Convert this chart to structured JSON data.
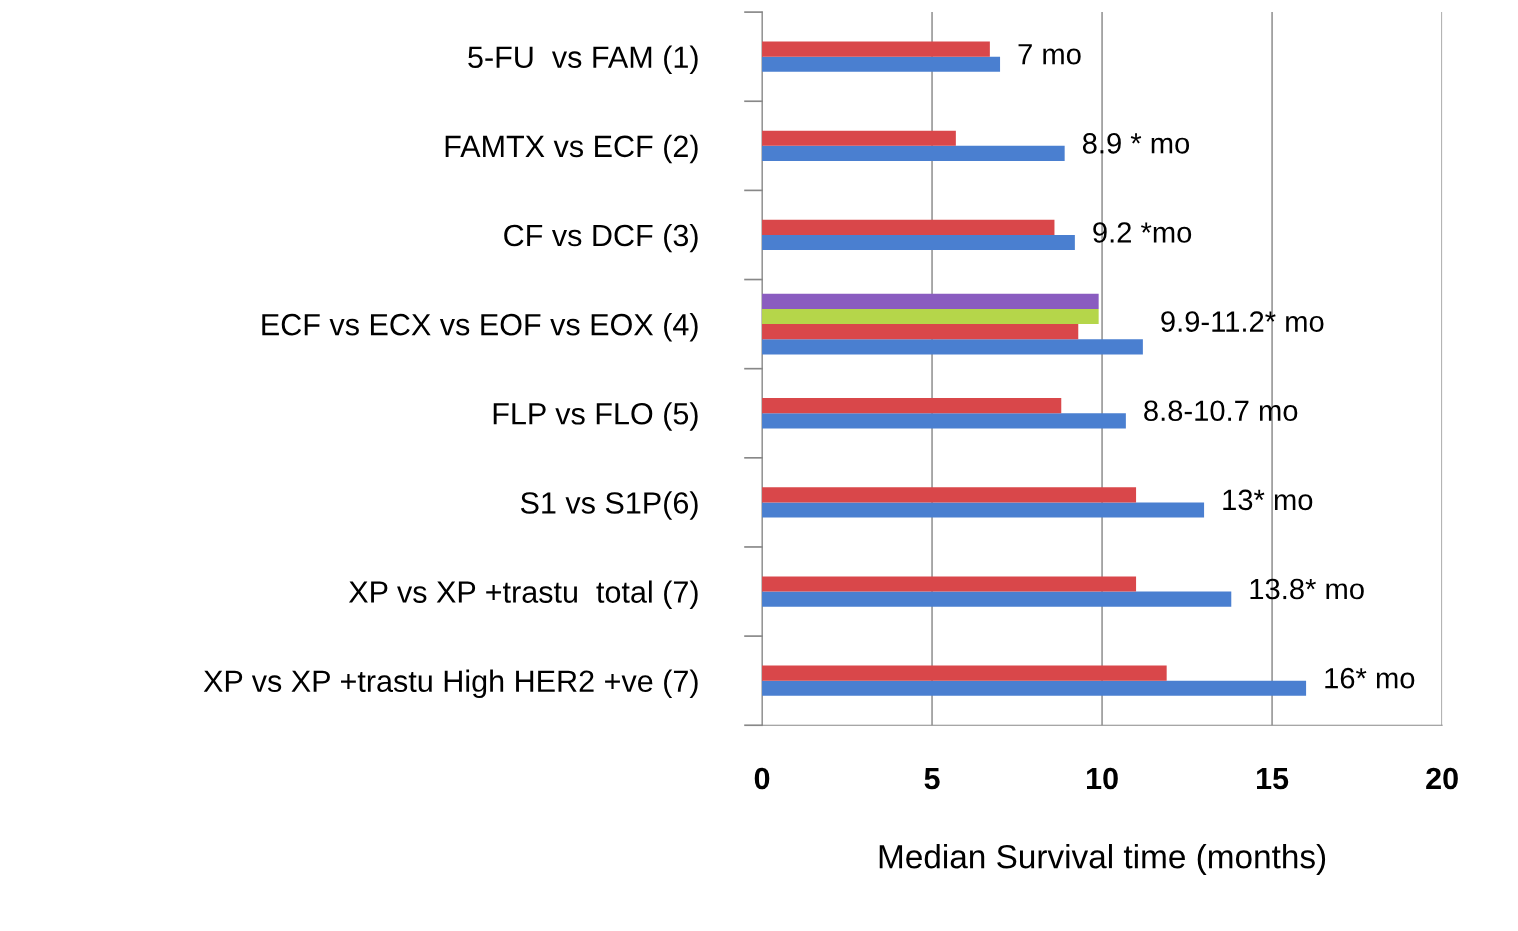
{
  "chart_data": {
    "type": "bar",
    "orientation": "horizontal",
    "xlabel": "Median Survival time (months)",
    "categories": [
      "5-FU  vs FAM (1)",
      "FAMTX vs ECF (2)",
      "CF vs DCF (3)",
      "ECF vs ECX vs EOF vs EOX (4)",
      "FLP vs FLO (5)",
      "S1 vs S1P(6)",
      "XP vs XP +trastu  total (7)",
      "XP vs XP +trastu High HER2 +ve (7)"
    ],
    "series": [
      {
        "color": "#4a7fd0",
        "values": [
          7.0,
          8.9,
          9.2,
          11.2,
          10.7,
          13.0,
          13.8,
          16.0
        ]
      },
      {
        "color": "#d9474a",
        "values": [
          6.7,
          5.7,
          8.6,
          9.3,
          8.8,
          11.0,
          11.0,
          11.9
        ]
      },
      {
        "color": "#b5d64a",
        "values": [
          null,
          null,
          null,
          9.9,
          null,
          null,
          null,
          null
        ]
      },
      {
        "color": "#8a5cc0",
        "values": [
          null,
          null,
          null,
          9.9,
          null,
          null,
          null,
          null
        ]
      }
    ],
    "xlim": [
      0,
      20
    ],
    "xticks": [
      0,
      5,
      10,
      15,
      20
    ],
    "grid": "x",
    "legend": false,
    "annotations": [
      {
        "text": "7 mo",
        "x": 7.0,
        "y": "5-FU  vs FAM (1)"
      },
      {
        "text": "8.9 * mo",
        "x": 8.9,
        "y": "FAMTX vs ECF (2)"
      },
      {
        "text": "9.2 *mo",
        "x": 9.2,
        "y": "CF vs DCF (3)"
      },
      "9.9-11.2* mo",
      {
        "text": "8.8-10.7 mo",
        "x": 10.7,
        "y": "FLP vs FLO (5)"
      },
      {
        "text": "13* mo",
        "x": 13.0,
        "y": "S1 vs S1P(6)"
      },
      {
        "text": "13.8* mo",
        "x": 13.8,
        "y": "XP vs XP +trastu  total (7)"
      },
      {
        "text": "16* mo",
        "x": 16.0,
        "y": "XP vs XP +trastu High HER2 +ve (7)"
      }
    ]
  }
}
